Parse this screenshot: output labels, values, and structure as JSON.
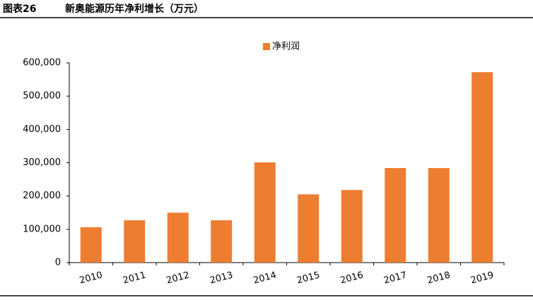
{
  "chart_data": {
    "type": "bar",
    "figure_label": "图表26",
    "title": "新奥能源历年净利增长（万元）",
    "categories": [
      "2010",
      "2011",
      "2012",
      "2013",
      "2014",
      "2015",
      "2016",
      "2017",
      "2018",
      "2019"
    ],
    "series": [
      {
        "name": "净利润",
        "color": "#ed7d31",
        "values": [
          106000,
          127000,
          150000,
          127000,
          301000,
          205000,
          218000,
          284000,
          284000,
          572000
        ]
      }
    ],
    "ylim": [
      0,
      600000
    ],
    "yticks": [
      0,
      {
        "value": 100000,
        "label": "100,000"
      },
      {
        "value": 200000,
        "label": "200,000"
      },
      {
        "value": 300000,
        "label": "300,000"
      },
      {
        "value": 400000,
        "label": "400,000"
      },
      {
        "value": 500000,
        "label": "500,000"
      },
      {
        "value": 600000,
        "label": "600,000"
      }
    ],
    "legend": "top",
    "grid": false
  }
}
